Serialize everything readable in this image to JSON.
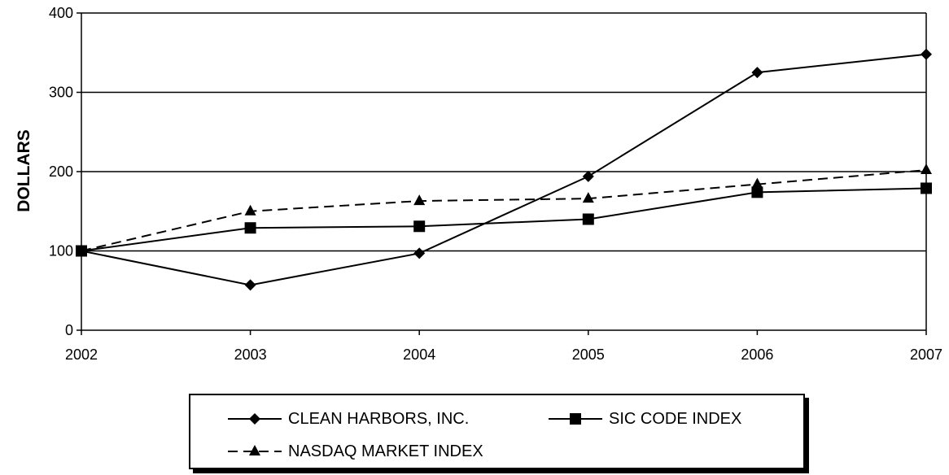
{
  "chart_data": {
    "type": "line",
    "title": "",
    "xlabel": "",
    "ylabel": "DOLLARS",
    "categories": [
      "2002",
      "2003",
      "2004",
      "2005",
      "2006",
      "2007"
    ],
    "ylim": [
      0,
      400
    ],
    "yticks": [
      0,
      100,
      200,
      300,
      400
    ],
    "grid": "horizontal",
    "legend_position": "bottom",
    "series": [
      {
        "name": "CLEAN HARBORS, INC.",
        "values": [
          100,
          57,
          97,
          194,
          325,
          348
        ],
        "marker": "diamond",
        "dash": "solid",
        "color": "#000000"
      },
      {
        "name": "SIC CODE INDEX",
        "values": [
          100,
          129,
          131,
          140,
          174,
          179
        ],
        "marker": "square",
        "dash": "solid",
        "color": "#000000"
      },
      {
        "name": "NASDAQ MARKET INDEX",
        "values": [
          100,
          150,
          163,
          166,
          184,
          202
        ],
        "marker": "triangle",
        "dash": "dashed",
        "color": "#000000"
      }
    ]
  }
}
